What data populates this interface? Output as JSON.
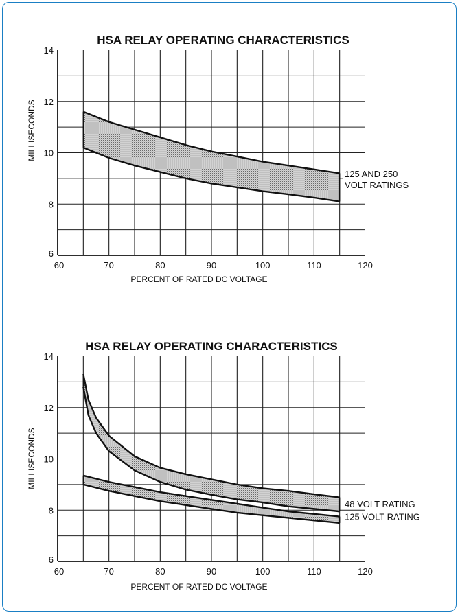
{
  "chart_data": [
    {
      "type": "area",
      "title": "HSA RELAY OPERATING CHARACTERISTICS",
      "xlabel": "PERCENT OF RATED DC VOLTAGE",
      "ylabel": "MILLISECONDS",
      "xlim": [
        60,
        120
      ],
      "ylim": [
        6,
        14
      ],
      "x_ticks": [
        60,
        70,
        80,
        90,
        100,
        110,
        120
      ],
      "x_tick_labels": [
        "60",
        "70",
        "80",
        "90",
        "100",
        "110",
        "120"
      ],
      "y_ticks": [
        6,
        8,
        10,
        12,
        14
      ],
      "y_tick_labels": [
        "6",
        "8",
        "10",
        "12",
        "14"
      ],
      "grid": true,
      "series": [
        {
          "name": "125 AND 250 VOLT RATINGS",
          "label_lines": [
            "125 AND 250",
            "VOLT RATINGS"
          ],
          "x": [
            65,
            70,
            75,
            80,
            85,
            90,
            95,
            100,
            105,
            110,
            115
          ],
          "upper": [
            11.6,
            11.2,
            10.9,
            10.6,
            10.3,
            10.05,
            9.85,
            9.65,
            9.5,
            9.35,
            9.2
          ],
          "lower": [
            10.2,
            9.8,
            9.5,
            9.25,
            9.0,
            8.8,
            8.65,
            8.5,
            8.38,
            8.25,
            8.1
          ]
        }
      ]
    },
    {
      "type": "area",
      "title": "HSA RELAY OPERATING CHARACTERISTICS",
      "xlabel": "PERCENT OF RATED DC VOLTAGE",
      "ylabel": "MILLISECONDS",
      "xlim": [
        60,
        120
      ],
      "ylim": [
        6,
        14
      ],
      "x_ticks": [
        60,
        70,
        80,
        90,
        100,
        110,
        120
      ],
      "x_tick_labels": [
        "60",
        "70",
        "80",
        "90",
        "100",
        "110",
        "120"
      ],
      "y_ticks": [
        6,
        8,
        10,
        12,
        14
      ],
      "y_tick_labels": [
        "6",
        "8",
        "10",
        "12",
        "14"
      ],
      "grid": true,
      "series": [
        {
          "name": "48 VOLT RATING",
          "label_lines": [
            "48 VOLT RATING"
          ],
          "x": [
            65,
            66,
            67.5,
            70,
            75,
            80,
            85,
            90,
            95,
            100,
            105,
            110,
            115
          ],
          "upper": [
            13.3,
            12.3,
            11.6,
            10.9,
            10.1,
            9.65,
            9.4,
            9.2,
            9.0,
            8.85,
            8.75,
            8.62,
            8.5
          ],
          "lower": [
            12.8,
            11.7,
            11.0,
            10.3,
            9.55,
            9.1,
            8.8,
            8.6,
            8.42,
            8.3,
            8.15,
            8.05,
            7.95
          ]
        },
        {
          "name": "125 VOLT RATING",
          "label_lines": [
            "125 VOLT RATING"
          ],
          "x": [
            65,
            70,
            75,
            80,
            85,
            90,
            95,
            100,
            105,
            110,
            115
          ],
          "upper": [
            9.35,
            9.1,
            8.9,
            8.7,
            8.55,
            8.4,
            8.25,
            8.1,
            7.95,
            7.85,
            7.75
          ],
          "lower": [
            9.0,
            8.75,
            8.55,
            8.35,
            8.2,
            8.05,
            7.9,
            7.8,
            7.7,
            7.6,
            7.5
          ]
        }
      ]
    }
  ]
}
